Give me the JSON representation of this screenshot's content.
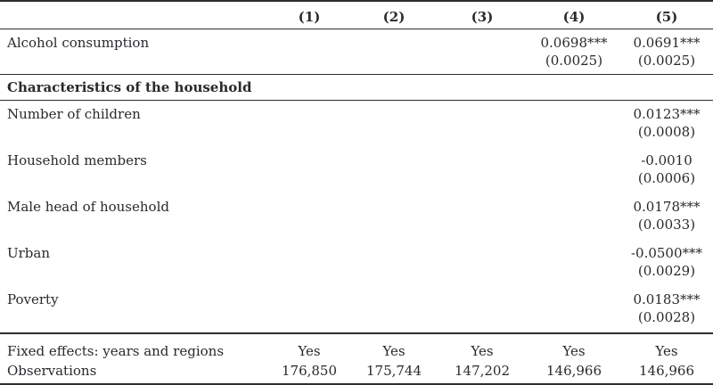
{
  "table": {
    "columns": [
      "(1)",
      "(2)",
      "(3)",
      "(4)",
      "(5)"
    ],
    "section_title": "Characteristics of the household",
    "alcohol": {
      "label": "Alcohol consumption",
      "c4": {
        "coef": "0.0698***",
        "se": "(0.0025)"
      },
      "c5": {
        "coef": "0.0691***",
        "se": "(0.0025)"
      }
    },
    "children": {
      "label": "Number of children",
      "c5": {
        "coef": "0.0123***",
        "se": "(0.0008)"
      }
    },
    "members": {
      "label": "Household members",
      "c5": {
        "coef": "-0.0010",
        "se": "(0.0006)"
      }
    },
    "male_head": {
      "label": "Male head of household",
      "c5": {
        "coef": "0.0178***",
        "se": "(0.0033)"
      }
    },
    "urban": {
      "label": "Urban",
      "c5": {
        "coef": "-0.0500***",
        "se": "(0.0029)"
      }
    },
    "poverty": {
      "label": "Poverty",
      "c5": {
        "coef": "0.0183***",
        "se": "(0.0028)"
      }
    },
    "fixed_effects": {
      "label": "Fixed effects: years and regions",
      "values": [
        "Yes",
        "Yes",
        "Yes",
        "Yes",
        "Yes"
      ]
    },
    "observations": {
      "label": "Observations",
      "values": [
        "176,850",
        "175,744",
        "147,202",
        "146,966",
        "146,966"
      ]
    }
  }
}
